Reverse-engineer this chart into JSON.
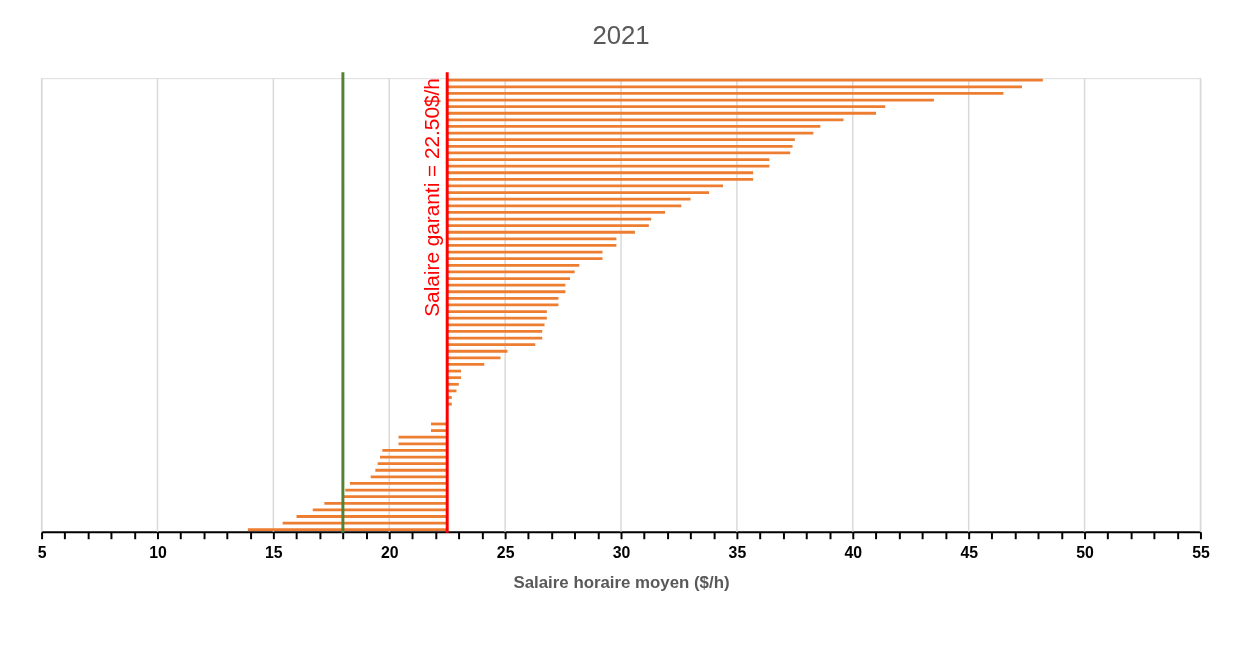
{
  "chart_data": {
    "type": "bar",
    "orientation": "horizontal",
    "title": "2021",
    "xlabel": "Salaire horaire moyen ($/h)",
    "categories": [
      null,
      null,
      null,
      null,
      null,
      null,
      null,
      null,
      null,
      null,
      null,
      null,
      null,
      null,
      null,
      null,
      null,
      null,
      null,
      null,
      null,
      null,
      null,
      null,
      null,
      null,
      null,
      null,
      null,
      null,
      null,
      null,
      null,
      null,
      null,
      null,
      null,
      null,
      null,
      null,
      null,
      null,
      null,
      null,
      null,
      null,
      null,
      null,
      null,
      null,
      null,
      null,
      null,
      null,
      null,
      null,
      null,
      null,
      null,
      null,
      null,
      null,
      null,
      null,
      null,
      null,
      null,
      null,
      null
    ],
    "base": [
      22.5,
      22.5,
      22.5,
      22.5,
      22.5,
      22.5,
      22.5,
      22.5,
      22.5,
      22.5,
      22.5,
      22.5,
      22.5,
      22.5,
      22.5,
      22.5,
      22.5,
      22.5,
      22.5,
      22.5,
      22.5,
      22.5,
      22.5,
      22.5,
      22.5,
      22.5,
      22.5,
      22.5,
      22.5,
      22.5,
      22.5,
      22.5,
      22.5,
      22.5,
      22.5,
      22.5,
      22.5,
      22.5,
      22.5,
      22.5,
      22.5,
      22.5,
      22.5,
      22.5,
      22.5,
      22.5,
      22.5,
      22.5,
      22.5,
      22.5,
      null,
      null,
      22.5,
      22.5,
      22.5,
      22.5,
      22.5,
      22.5,
      22.5,
      22.5,
      22.5,
      22.5,
      22.5,
      22.5,
      22.5,
      22.5,
      22.5,
      22.5,
      22.5
    ],
    "values": [
      25.7,
      24.8,
      24.0,
      21.0,
      18.9,
      18.5,
      17.1,
      16.1,
      15.8,
      15.0,
      14.9,
      14.8,
      13.9,
      13.9,
      13.2,
      13.2,
      11.9,
      11.3,
      10.5,
      10.1,
      9.4,
      8.8,
      8.7,
      8.1,
      7.3,
      7.3,
      6.7,
      6.7,
      5.7,
      5.5,
      5.3,
      5.1,
      5.1,
      4.8,
      4.8,
      4.3,
      4.3,
      4.2,
      4.1,
      4.1,
      3.8,
      2.6,
      2.3,
      1.6,
      0.6,
      0.6,
      0.5,
      0.4,
      0.2,
      0.2,
      null,
      null,
      -0.7,
      -0.7,
      -2.1,
      -2.1,
      -2.8,
      -2.9,
      -3.0,
      -3.1,
      -3.3,
      -4.2,
      -4.4,
      -4.5,
      -5.3,
      -5.8,
      -6.5,
      -7.1,
      -8.6
    ],
    "color": "#ed7d31",
    "xlim": [
      5,
      55
    ],
    "xticks": [
      5,
      {
        "value": 6,
        "label": null
      },
      {
        "value": 7,
        "label": null
      },
      {
        "value": 8,
        "label": null
      },
      {
        "value": 9,
        "label": null
      },
      10,
      {
        "value": 11,
        "label": null
      },
      {
        "value": 12,
        "label": null
      },
      {
        "value": 13,
        "label": null
      },
      {
        "value": 14,
        "label": null
      },
      15,
      {
        "value": 16,
        "label": null
      },
      {
        "value": 17,
        "label": null
      },
      {
        "value": 18,
        "label": null
      },
      {
        "value": 19,
        "label": null
      },
      20,
      {
        "value": 21,
        "label": null
      },
      {
        "value": 22,
        "label": null
      },
      {
        "value": 23,
        "label": null
      },
      {
        "value": 24,
        "label": null
      },
      25,
      {
        "value": 26,
        "label": null
      },
      {
        "value": 27,
        "label": null
      },
      {
        "value": 28,
        "label": null
      },
      {
        "value": 29,
        "label": null
      },
      30,
      {
        "value": 31,
        "label": null
      },
      {
        "value": 32,
        "label": null
      },
      {
        "value": 33,
        "label": null
      },
      {
        "value": 34,
        "label": null
      },
      35,
      {
        "value": 36,
        "label": null
      },
      {
        "value": 37,
        "label": null
      },
      {
        "value": 38,
        "label": null
      },
      {
        "value": 39,
        "label": null
      },
      40,
      {
        "value": 41,
        "label": null
      },
      {
        "value": 42,
        "label": null
      },
      {
        "value": 43,
        "label": null
      },
      {
        "value": 44,
        "label": null
      },
      45,
      {
        "value": 46,
        "label": null
      },
      {
        "value": 47,
        "label": null
      },
      {
        "value": 48,
        "label": null
      },
      {
        "value": 49,
        "label": null
      },
      50,
      {
        "value": 51,
        "label": null
      },
      {
        "value": 52,
        "label": null
      },
      {
        "value": 53,
        "label": null
      },
      {
        "value": 54,
        "label": null
      },
      55
    ],
    "grid": "x",
    "ref_lines": [
      {
        "axis": "x",
        "value": 18,
        "color": "#548235"
      },
      {
        "axis": "x",
        "value": 22.5,
        "label": "Salaire garanti = 22.50$/h",
        "color": "#ff0000"
      }
    ]
  }
}
